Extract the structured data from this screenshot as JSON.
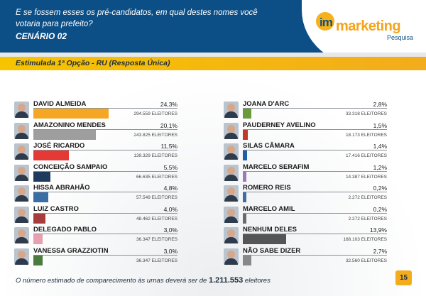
{
  "header": {
    "question_line1": "E se fossem esses os pré-candidatos, em qual destes nomes você",
    "question_line2": "votaria para prefeito?",
    "scenario": "CENÁRIO 02"
  },
  "logo": {
    "im": "im",
    "brand": "marketing",
    "sub": "Pesquisa"
  },
  "subtitle": "Estimulada 1ª Opção - RU (Resposta Única)",
  "chart_data": {
    "type": "bar",
    "orientation": "horizontal",
    "unit": "%",
    "columns": [
      {
        "items": [
          {
            "name": "DAVID ALMEIDA",
            "value": 24.3,
            "pct_label": "24,3%",
            "voters": "294.559 ELEITORES",
            "color": "#f5a623"
          },
          {
            "name": "AMAZONINO MENDES",
            "value": 20.1,
            "pct_label": "20,1%",
            "voters": "243.825 ELEITORES",
            "color": "#9e9e9e"
          },
          {
            "name": "JOSÉ RICARDO",
            "value": 11.5,
            "pct_label": "11,5%",
            "voters": "139.329 ELEITORES",
            "color": "#e53935"
          },
          {
            "name": "CONCEIÇÃO SAMPAIO",
            "value": 5.5,
            "pct_label": "5,5%",
            "voters": "66.635 ELEITORES",
            "color": "#1f3a5f"
          },
          {
            "name": "HISSA ABRAHÃO",
            "value": 4.8,
            "pct_label": "4,8%",
            "voters": "57.549 ELEITORES",
            "color": "#3a6ea5"
          },
          {
            "name": "LUIZ CASTRO",
            "value": 4.0,
            "pct_label": "4,0%",
            "voters": "48.462 ELEITORES",
            "color": "#a83c3c"
          },
          {
            "name": "DELEGADO PABLO",
            "value": 3.0,
            "pct_label": "3,0%",
            "voters": "36.347 ELEITORES",
            "color": "#e8a0b0"
          },
          {
            "name": "VANESSA GRAZZIOTIN",
            "value": 3.0,
            "pct_label": "3,0%",
            "voters": "36.347 ELEITORES",
            "color": "#4a7a3d"
          }
        ]
      },
      {
        "items": [
          {
            "name": "JOANA D'ARC",
            "value": 2.8,
            "pct_label": "2,8%",
            "voters": "33.318 ELEITORES",
            "color": "#6a9a3a"
          },
          {
            "name": "PAUDERNEY AVELINO",
            "value": 1.5,
            "pct_label": "1,5%",
            "voters": "18.173 ELEITORES",
            "color": "#c0392b"
          },
          {
            "name": "SILAS CÂMARA",
            "value": 1.4,
            "pct_label": "1,4%",
            "voters": "17.416 ELEITORES",
            "color": "#1f5fa8"
          },
          {
            "name": "MARCELO SERAFIM",
            "value": 1.2,
            "pct_label": "1,2%",
            "voters": "14.387 ELEITORES",
            "color": "#9b7ab8"
          },
          {
            "name": "ROMERO REIS",
            "value": 0.2,
            "pct_label": "0,2%",
            "voters": "2.272 ELEITORES",
            "color": "#3a6ea5"
          },
          {
            "name": "MARCELO AMIL",
            "value": 0.2,
            "pct_label": "0,2%",
            "voters": "2.272 ELEITORES",
            "color": "#6a6a6a"
          },
          {
            "name": "NENHUM DELES",
            "value": 13.9,
            "pct_label": "13,9%",
            "voters": "168.103 ELEITORES",
            "color": "#555555"
          },
          {
            "name": "NÃO SABE DIZER",
            "value": 2.7,
            "pct_label": "2,7%",
            "voters": "32.560 ELEITORES",
            "color": "#888888"
          }
        ]
      }
    ]
  },
  "footer": {
    "text_before": "O número estimado de comparecimento às urnas deverá ser de ",
    "turnout": "1.211.553",
    "text_after": " eleitores"
  },
  "page_number": "15"
}
